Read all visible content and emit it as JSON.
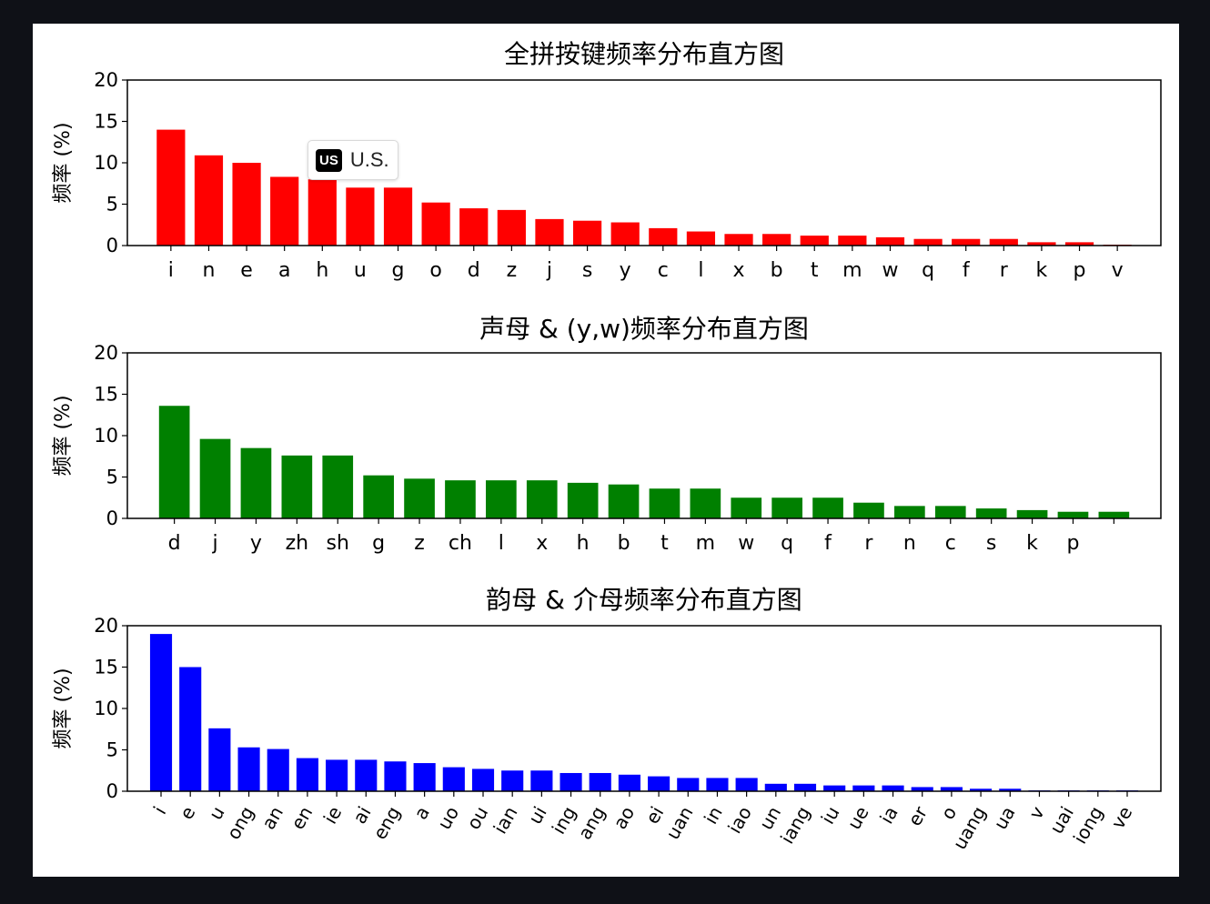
{
  "chart_data": [
    {
      "type": "bar",
      "title": "全拼按键频率分布直方图",
      "ylabel": "频率 (%)",
      "xlabel": "",
      "ylim": [
        0,
        20
      ],
      "yticks": [
        "0",
        "5",
        "10",
        "15",
        "20"
      ],
      "color": "#ff0000",
      "tick_rotation": 0,
      "categories": [
        "i",
        "n",
        "e",
        "a",
        "h",
        "u",
        "g",
        "o",
        "d",
        "z",
        "j",
        "s",
        "y",
        "c",
        "l",
        "x",
        "b",
        "t",
        "m",
        "w",
        "q",
        "f",
        "r",
        "k",
        "p",
        "v"
      ],
      "values": [
        14.0,
        10.9,
        10.0,
        8.3,
        8.0,
        7.0,
        7.0,
        5.2,
        4.5,
        4.3,
        3.2,
        3.0,
        2.8,
        2.1,
        1.7,
        1.4,
        1.4,
        1.2,
        1.2,
        1.0,
        0.8,
        0.8,
        0.8,
        0.4,
        0.4,
        0.1
      ],
      "grid": false,
      "legend": "none"
    },
    {
      "type": "bar",
      "title": "声母 & (y,w)频率分布直方图",
      "ylabel": "频率 (%)",
      "xlabel": "",
      "ylim": [
        0,
        20
      ],
      "yticks": [
        "0",
        "5",
        "10",
        "15",
        "20"
      ],
      "color": "#008000",
      "tick_rotation": 0,
      "categories": [
        "d",
        "j",
        "y",
        "zh",
        "sh",
        "g",
        "z",
        "ch",
        "l",
        "x",
        "h",
        "b",
        "t",
        "m",
        "w",
        "q",
        "f",
        "r",
        "n",
        "c",
        "s",
        "k",
        "p",
        ""
      ],
      "values": [
        13.6,
        9.6,
        8.5,
        7.6,
        7.6,
        5.2,
        4.8,
        4.6,
        4.6,
        4.6,
        4.3,
        4.1,
        3.6,
        3.6,
        2.5,
        2.5,
        2.5,
        1.9,
        1.5,
        1.5,
        1.2,
        1.0,
        0.8,
        0.8
      ],
      "grid": false,
      "legend": "none"
    },
    {
      "type": "bar",
      "title": "韵母 & 介母频率分布直方图",
      "ylabel": "频率 (%)",
      "xlabel": "",
      "ylim": [
        0,
        20
      ],
      "yticks": [
        "0",
        "5",
        "10",
        "15",
        "20"
      ],
      "color": "#0000ff",
      "tick_rotation": -60,
      "categories": [
        "i",
        "e",
        "u",
        "ong",
        "an",
        "en",
        "ie",
        "ai",
        "eng",
        "a",
        "uo",
        "ou",
        "ian",
        "ui",
        "ing",
        "ang",
        "ao",
        "ei",
        "uan",
        "in",
        "iao",
        "un",
        "iang",
        "iu",
        "ue",
        "ia",
        "er",
        "o",
        "uang",
        "ua",
        "v",
        "uai",
        "iong",
        "ve"
      ],
      "values": [
        19.0,
        15.0,
        7.6,
        5.3,
        5.1,
        4.0,
        3.8,
        3.8,
        3.6,
        3.4,
        2.9,
        2.7,
        2.5,
        2.5,
        2.2,
        2.2,
        2.0,
        1.8,
        1.6,
        1.6,
        1.6,
        0.9,
        0.9,
        0.7,
        0.7,
        0.7,
        0.5,
        0.5,
        0.3,
        0.3,
        0.1,
        0.1,
        0.1,
        0.1
      ],
      "grid": false,
      "legend": "none"
    }
  ],
  "badge": {
    "code": "US",
    "label": "U.S."
  }
}
